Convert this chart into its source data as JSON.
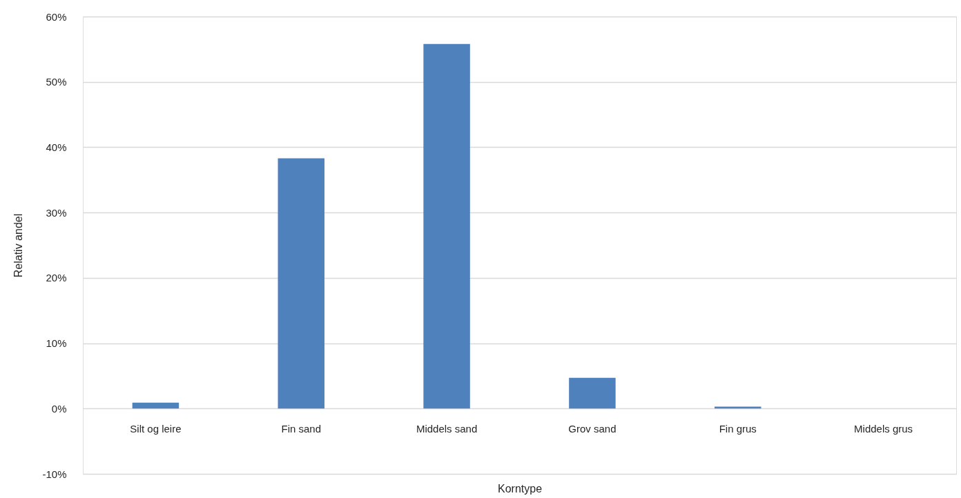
{
  "chart_data": {
    "type": "bar",
    "xlabel": "Korntype",
    "ylabel": "Relativ andel",
    "categories": [
      "Silt og leire",
      "Fin sand",
      "Middels sand",
      "Grov sand",
      "Fin grus",
      "Middels grus"
    ],
    "values": [
      0.9,
      38.3,
      55.8,
      4.7,
      0.3,
      0
    ],
    "color": "#4f81bd",
    "ylim": [
      -10,
      60
    ],
    "yticks": [
      {
        "value": -10,
        "label": "-10%"
      },
      {
        "value": 0,
        "label": "0%"
      },
      {
        "value": 10,
        "label": "10%"
      },
      {
        "value": 20,
        "label": "20%"
      },
      {
        "value": 30,
        "label": "30%"
      },
      {
        "value": 40,
        "label": "40%"
      },
      {
        "value": 50,
        "label": "50%"
      },
      {
        "value": 60,
        "label": "60%"
      }
    ],
    "grid": "y"
  }
}
